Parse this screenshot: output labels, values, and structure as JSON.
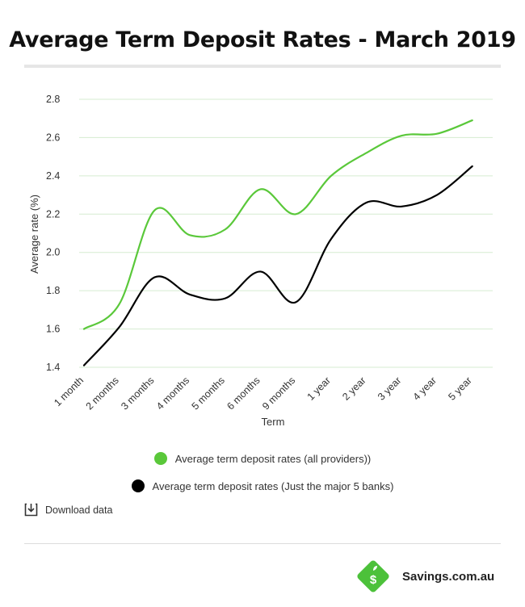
{
  "header": {
    "title": "Average Term Deposit Rates - March 2019"
  },
  "chart_data": {
    "type": "line",
    "title": "Average Term Deposit Rates - March 2019",
    "xlabel": "Term",
    "ylabel": "Average rate (%)",
    "ylim": [
      1.4,
      2.8
    ],
    "yticks": [
      "1.4",
      "1.6",
      "1.8",
      "2.0",
      "2.2",
      "2.4",
      "2.6",
      "2.8"
    ],
    "categories": [
      "1 month",
      "2 months",
      "3 months",
      "4 months",
      "5 months",
      "6 months",
      "9 months",
      "1 year",
      "2 year",
      "3 year",
      "4 year",
      "5 year"
    ],
    "series": [
      {
        "name": "Average term deposit rates (all providers))",
        "color": "#5ac83a",
        "values": [
          1.6,
          1.73,
          2.22,
          2.09,
          2.12,
          2.33,
          2.2,
          2.4,
          2.52,
          2.61,
          2.62,
          2.69
        ]
      },
      {
        "name": "Average term deposit rates (Just the major 5 banks)",
        "color": "#000000",
        "values": [
          1.41,
          1.61,
          1.87,
          1.78,
          1.76,
          1.9,
          1.74,
          2.07,
          2.26,
          2.24,
          2.3,
          2.45
        ]
      }
    ],
    "grid": true,
    "legend": "bottom-center"
  },
  "footer": {
    "download_label": "Download data",
    "brand": "Savings.com.au"
  },
  "colors": {
    "grid": "#d5ecd0",
    "brand_green": "#4cc13a"
  }
}
